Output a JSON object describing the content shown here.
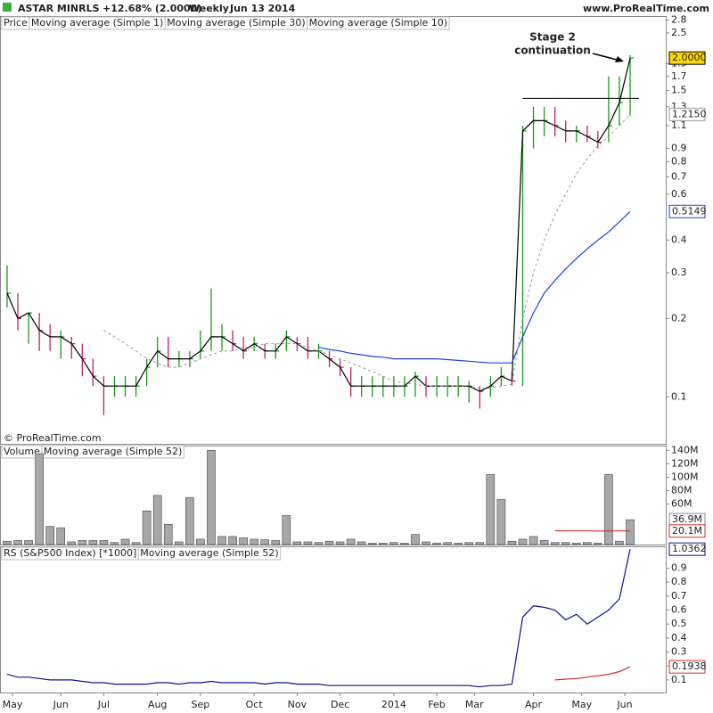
{
  "header": {
    "symbol": "ASTAR MINRLS",
    "change": "+12.68% (2.0000)",
    "period": "Weekly",
    "date": "Jun 13 2014",
    "site": "www.ProRealTime.com",
    "copyright": "© ProRealTime.com"
  },
  "xlim": [
    -0.66,
    61.4
  ],
  "x_ticks": [
    {
      "value": 0.5,
      "label": "May"
    },
    {
      "value": 5,
      "label": "Jun"
    },
    {
      "value": 9,
      "label": "Jul"
    },
    {
      "value": 14,
      "label": "Aug"
    },
    {
      "value": 18,
      "label": "Sep"
    },
    {
      "value": 23,
      "label": "Oct"
    },
    {
      "value": 27,
      "label": "Nov"
    },
    {
      "value": 31,
      "label": "Dec"
    },
    {
      "value": 36,
      "label": "2014"
    },
    {
      "value": 40,
      "label": "Feb"
    },
    {
      "value": 43.5,
      "label": "Mar"
    },
    {
      "value": 49,
      "label": "Apr"
    },
    {
      "value": 53.5,
      "label": "May"
    },
    {
      "value": 57.5,
      "label": "Jun"
    }
  ],
  "chart_data": [
    {
      "type": "ohlc",
      "title": "Price",
      "log": true,
      "ylim": [
        0.066,
        2.9
      ],
      "yticks": [
        2.8,
        2.5,
        1.9,
        1.7,
        1.5,
        1.3,
        1.1,
        0.9,
        0.8,
        0.7,
        0.6,
        0.4,
        0.3,
        0.2,
        0.1
      ],
      "up_color": "#1a9a1a",
      "down_color": "#c0206a",
      "high": [
        0.32,
        0.25,
        0.21,
        0.21,
        0.19,
        0.18,
        0.17,
        0.16,
        0.14,
        0.12,
        0.12,
        0.12,
        0.12,
        0.14,
        0.17,
        0.17,
        0.15,
        0.15,
        0.18,
        0.26,
        0.19,
        0.18,
        0.17,
        0.17,
        0.16,
        0.16,
        0.18,
        0.17,
        0.17,
        0.16,
        0.15,
        0.14,
        0.13,
        0.12,
        0.12,
        0.12,
        0.12,
        0.12,
        0.125,
        0.12,
        0.12,
        0.12,
        0.12,
        0.115,
        0.11,
        0.12,
        0.13,
        0.125,
        1.1,
        1.3,
        1.3,
        1.3,
        1.15,
        1.1,
        1.1,
        1.05,
        1.7,
        1.7,
        2.05
      ],
      "low": [
        0.22,
        0.18,
        0.16,
        0.15,
        0.15,
        0.14,
        0.14,
        0.12,
        0.11,
        0.085,
        0.1,
        0.1,
        0.1,
        0.11,
        0.13,
        0.13,
        0.13,
        0.13,
        0.14,
        0.15,
        0.15,
        0.15,
        0.14,
        0.15,
        0.14,
        0.14,
        0.15,
        0.15,
        0.14,
        0.14,
        0.13,
        0.12,
        0.1,
        0.1,
        0.1,
        0.1,
        0.1,
        0.1,
        0.1,
        0.1,
        0.1,
        0.1,
        0.1,
        0.095,
        0.09,
        0.1,
        0.11,
        0.11,
        0.11,
        0.9,
        1.0,
        1.0,
        0.95,
        0.95,
        0.95,
        0.9,
        0.95,
        1.1,
        1.2
      ],
      "series": [
        {
          "name": "Moving average (Simple 1)",
          "color": "#000000",
          "dash": false,
          "last_label": "2.0000",
          "label_bg": "#ffd700",
          "values": [
            0.25,
            0.2,
            0.21,
            0.18,
            0.17,
            0.17,
            0.16,
            0.14,
            0.12,
            0.11,
            0.11,
            0.11,
            0.11,
            0.13,
            0.15,
            0.14,
            0.14,
            0.14,
            0.15,
            0.17,
            0.17,
            0.16,
            0.15,
            0.16,
            0.15,
            0.15,
            0.17,
            0.16,
            0.15,
            0.15,
            0.14,
            0.13,
            0.11,
            0.11,
            0.11,
            0.11,
            0.11,
            0.11,
            0.12,
            0.11,
            0.11,
            0.11,
            0.11,
            0.11,
            0.105,
            0.11,
            0.12,
            0.115,
            1.05,
            1.15,
            1.15,
            1.1,
            1.05,
            1.05,
            1.0,
            0.95,
            1.1,
            1.35,
            2.0
          ]
        },
        {
          "name": "Moving average (Simple 30)",
          "color": "#2040e0",
          "dash": false,
          "last_label": "0.5149",
          "label_bg": "#ffffff",
          "values": [
            null,
            null,
            null,
            null,
            null,
            null,
            null,
            null,
            null,
            null,
            null,
            null,
            null,
            null,
            null,
            null,
            null,
            null,
            null,
            null,
            null,
            null,
            null,
            null,
            null,
            null,
            null,
            null,
            null,
            0.155,
            0.152,
            0.15,
            0.147,
            0.145,
            0.143,
            0.142,
            0.14,
            0.14,
            0.14,
            0.14,
            0.14,
            0.139,
            0.138,
            0.137,
            0.136,
            0.135,
            0.135,
            0.135,
            0.17,
            0.21,
            0.25,
            0.28,
            0.31,
            0.34,
            0.37,
            0.4,
            0.43,
            0.47,
            0.5149
          ]
        },
        {
          "name": "Moving average (Simple 10)",
          "color": "#999999",
          "dash": true,
          "last_label": "1.2150",
          "label_bg": "#ffffff",
          "values": [
            null,
            null,
            null,
            null,
            null,
            null,
            null,
            null,
            null,
            0.18,
            0.17,
            0.16,
            0.15,
            0.14,
            0.135,
            0.13,
            0.13,
            0.135,
            0.14,
            0.145,
            0.15,
            0.15,
            0.155,
            0.155,
            0.16,
            0.16,
            0.16,
            0.16,
            0.155,
            0.15,
            0.145,
            0.14,
            0.135,
            0.13,
            0.125,
            0.12,
            0.115,
            0.113,
            0.112,
            0.11,
            0.11,
            0.11,
            0.11,
            0.109,
            0.108,
            0.108,
            0.11,
            0.112,
            0.2,
            0.3,
            0.4,
            0.5,
            0.6,
            0.72,
            0.82,
            0.92,
            1.0,
            1.1,
            1.215
          ]
        }
      ],
      "resistance": {
        "value": 1.4,
        "from": 48
      },
      "annotation": [
        "Stage 2",
        "continuation"
      ]
    },
    {
      "type": "bar",
      "title": "Volume",
      "ylim": [
        0,
        147
      ],
      "color": "#a8a8a8",
      "yticks": [
        {
          "value": 140,
          "label": "140M"
        },
        {
          "value": 120,
          "label": "120M"
        },
        {
          "value": 100,
          "label": "100M"
        },
        {
          "value": 80,
          "label": "80M"
        },
        {
          "value": 60,
          "label": "60M"
        }
      ],
      "values": [
        5,
        6,
        6,
        135,
        27,
        25,
        4,
        6,
        6,
        6,
        3,
        8,
        3,
        50,
        73,
        30,
        4,
        70,
        8,
        140,
        12,
        12,
        10,
        8,
        7,
        6,
        43,
        4,
        4,
        3,
        5,
        4,
        8,
        4,
        2,
        2,
        3,
        2,
        15,
        4,
        2,
        3,
        2,
        3,
        3,
        104,
        67,
        5,
        8,
        12,
        6,
        3,
        3,
        2,
        3,
        2,
        104,
        5,
        36.9
      ],
      "last_label": "36.9M",
      "series": [
        {
          "name": "Moving average (Simple 52)",
          "color": "#d03030",
          "dash": false,
          "last_label": "20.1M",
          "label_bg": "#ffffff",
          "values": [
            null,
            null,
            null,
            null,
            null,
            null,
            null,
            null,
            null,
            null,
            null,
            null,
            null,
            null,
            null,
            null,
            null,
            null,
            null,
            null,
            null,
            null,
            null,
            null,
            null,
            null,
            null,
            null,
            null,
            null,
            null,
            null,
            null,
            null,
            null,
            null,
            null,
            null,
            null,
            null,
            null,
            null,
            null,
            null,
            null,
            null,
            null,
            null,
            null,
            null,
            null,
            20.5,
            20.3,
            20.2,
            20.2,
            20.1,
            20.3,
            20.2,
            20.1
          ]
        }
      ]
    },
    {
      "type": "line",
      "ylim": [
        0.01,
        1.05
      ],
      "yticks": [
        0.9,
        0.8,
        0.7,
        0.6,
        0.5,
        0.4,
        0.3,
        0.2,
        0.1
      ],
      "series": [
        {
          "name": "RS (S&P500 Index) [*1000]",
          "color": "#101090",
          "dash": false,
          "last_label": "1.0362",
          "label_bg": "#ffffff",
          "values": [
            0.14,
            0.12,
            0.12,
            0.11,
            0.1,
            0.1,
            0.1,
            0.09,
            0.08,
            0.08,
            0.07,
            0.07,
            0.07,
            0.07,
            0.08,
            0.08,
            0.07,
            0.08,
            0.08,
            0.09,
            0.08,
            0.08,
            0.08,
            0.08,
            0.07,
            0.08,
            0.08,
            0.07,
            0.07,
            0.07,
            0.06,
            0.06,
            0.06,
            0.06,
            0.06,
            0.06,
            0.06,
            0.06,
            0.06,
            0.06,
            0.06,
            0.06,
            0.06,
            0.06,
            0.05,
            0.06,
            0.06,
            0.07,
            0.55,
            0.63,
            0.62,
            0.6,
            0.53,
            0.57,
            0.5,
            0.55,
            0.6,
            0.68,
            1.0362
          ]
        },
        {
          "name": "Moving average (Simple 52)",
          "color": "#d03030",
          "dash": false,
          "last_label": "0.1938",
          "label_bg": "#ffffff",
          "values": [
            null,
            null,
            null,
            null,
            null,
            null,
            null,
            null,
            null,
            null,
            null,
            null,
            null,
            null,
            null,
            null,
            null,
            null,
            null,
            null,
            null,
            null,
            null,
            null,
            null,
            null,
            null,
            null,
            null,
            null,
            null,
            null,
            null,
            null,
            null,
            null,
            null,
            null,
            null,
            null,
            null,
            null,
            null,
            null,
            null,
            null,
            null,
            null,
            null,
            null,
            null,
            0.1,
            0.105,
            0.11,
            0.12,
            0.13,
            0.14,
            0.16,
            0.1938
          ]
        }
      ]
    }
  ]
}
